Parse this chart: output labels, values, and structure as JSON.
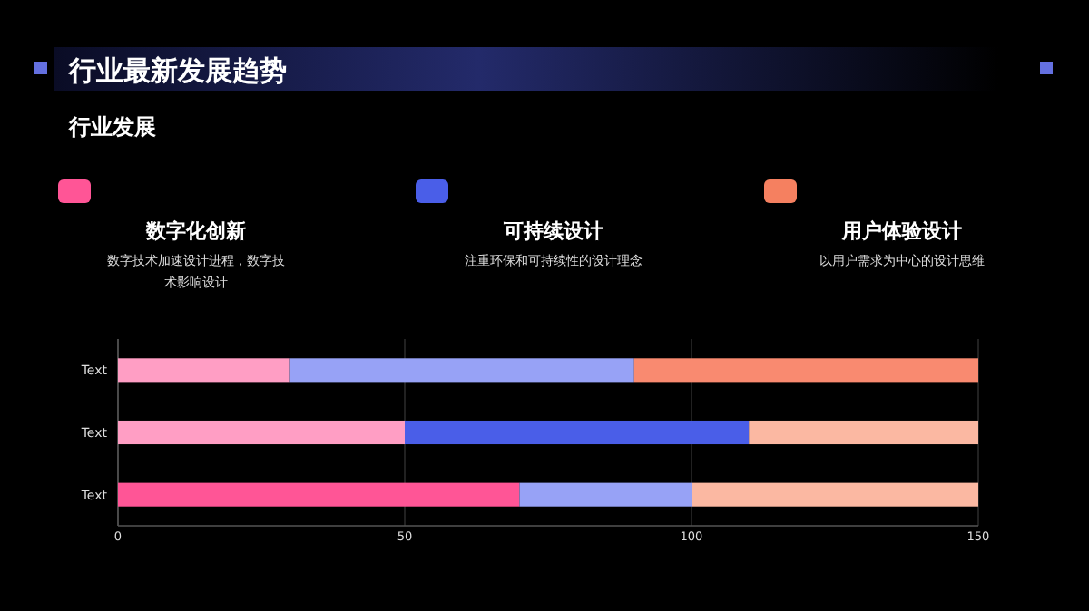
{
  "chart_data": {
    "type": "bar",
    "orientation": "horizontal",
    "stacked": true,
    "title": "行业最新发展趋势",
    "subtitle": "行业发展",
    "annotations": [
      "数字化创新",
      "数字技术加速设计进程，数字技术影响设计",
      "可持续设计",
      "注重环保和可持续性的设计理念",
      "用户体验设计",
      "以用户需求为中心的设计思维"
    ],
    "categories": [
      "Text",
      "Text",
      "Text"
    ],
    "series": [
      {
        "colors": [
          "#ff9ec4",
          "#ff9ec4",
          "#ff5596"
        ],
        "values": [
          30,
          50,
          70
        ]
      },
      {
        "colors": [
          "#97a2f6",
          "#4a5ee8",
          "#97a2f6"
        ],
        "values": [
          60,
          60,
          30
        ]
      },
      {
        "colors": [
          "#f98a70",
          "#fbb8a2",
          "#fbb8a2"
        ],
        "values": [
          60,
          40,
          50
        ]
      }
    ],
    "xlim": [
      0,
      150
    ],
    "xticks": [
      0,
      50,
      100,
      150
    ],
    "grid": "x"
  }
}
